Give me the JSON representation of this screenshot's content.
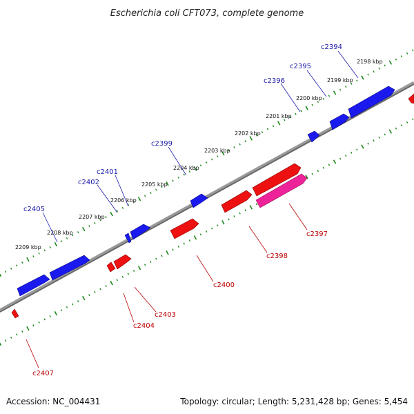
{
  "title": "Escherichia coli CFT073, complete genome",
  "footer": {
    "accession": "Accession: NC_004431",
    "summary": "Topology: circular; Length: 5,231,428 bp; Genes: 5,454"
  },
  "colors": {
    "forward_gene": "#1a1aee",
    "reverse_gene": "#ee1111",
    "highlight_gene": "#ee2299",
    "backbone": "#808080",
    "tick": "#1a8a1a",
    "forward_label": "#1a1aaa",
    "reverse_label": "#bb0000"
  },
  "kbp_labels": [
    "2198 kbp",
    "2199 kbp",
    "2200 kbp",
    "2201 kbp",
    "2202 kbp",
    "2203 kbp",
    "2204 kbp",
    "2205 kbp",
    "2206 kbp",
    "2207 kbp",
    "2208 kbp",
    "2209 kbp"
  ],
  "forward_genes": [
    "c2394",
    "c2395",
    "c2396",
    "c2399",
    "c2401",
    "c2402",
    "c2405"
  ],
  "reverse_genes": [
    "c2397",
    "c2398",
    "c2400",
    "c2403",
    "c2404",
    "c2407"
  ]
}
